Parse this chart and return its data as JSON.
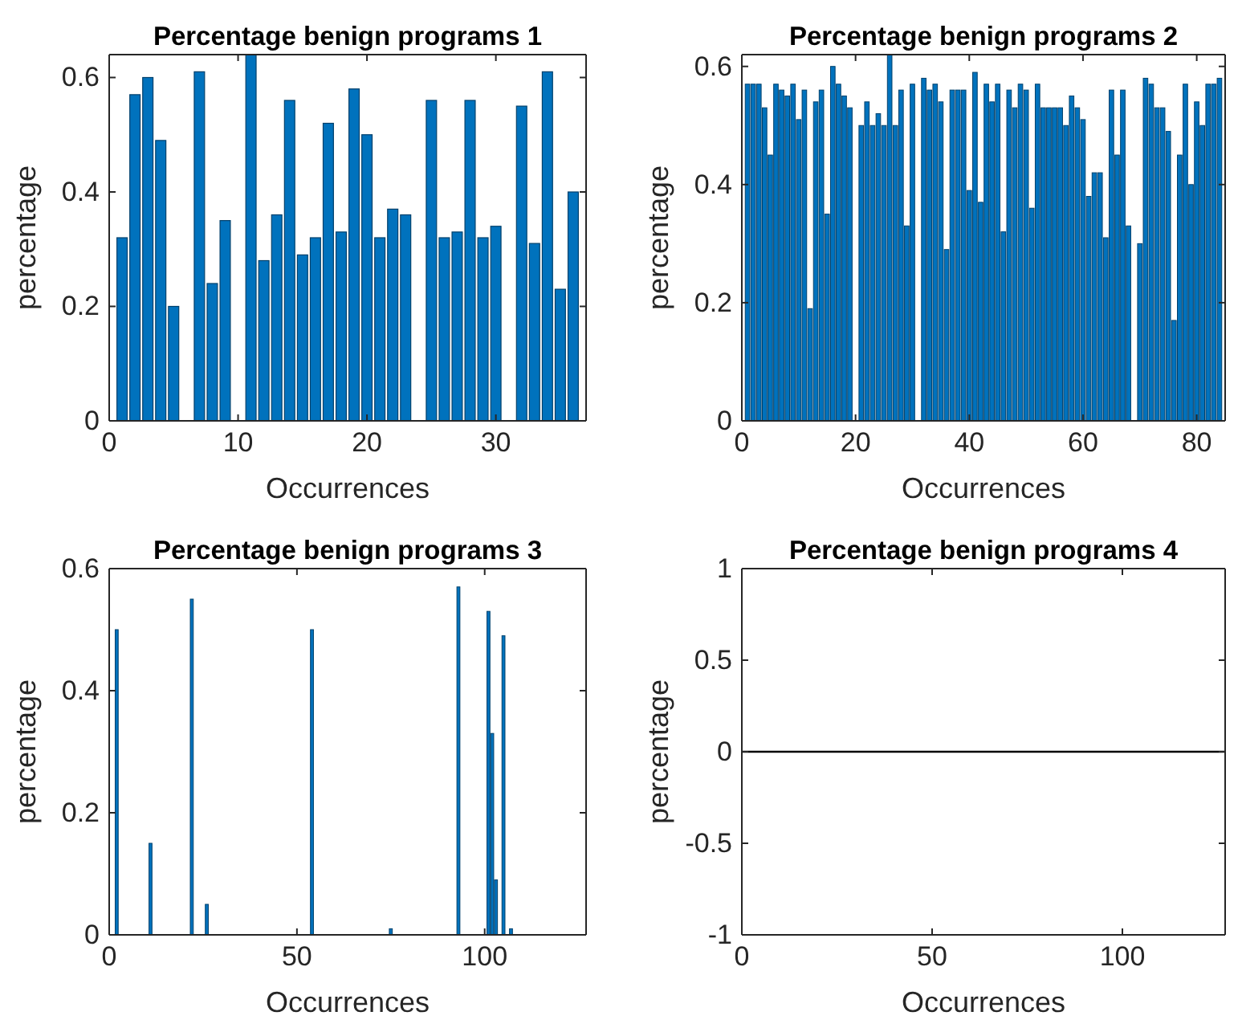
{
  "chart_data": [
    {
      "type": "bar",
      "title": "Percentage benign programs 1",
      "xlabel": "Occurrences",
      "ylabel": "percentage",
      "color": "#0072bd",
      "x": [
        1,
        2,
        3,
        4,
        5,
        6,
        7,
        8,
        9,
        10,
        11,
        12,
        13,
        14,
        15,
        16,
        17,
        18,
        19,
        20,
        21,
        22,
        23,
        24,
        25,
        26,
        27,
        28,
        29,
        30,
        31,
        32,
        33,
        34,
        35,
        36
      ],
      "values": [
        0.32,
        0.57,
        0.6,
        0.49,
        0.2,
        0,
        0.61,
        0.24,
        0.35,
        0,
        0.64,
        0.28,
        0.36,
        0.56,
        0.29,
        0.32,
        0.52,
        0.33,
        0.58,
        0.5,
        0.32,
        0.37,
        0.36,
        0,
        0.56,
        0.32,
        0.33,
        0.56,
        0.32,
        0.34,
        0,
        0.55,
        0.31,
        0.61,
        0.23,
        0.4
      ],
      "xlim": [
        0,
        37
      ],
      "xticks": [
        0,
        10,
        20,
        30
      ],
      "ylim": [
        0,
        0.64
      ],
      "yticks": [
        0,
        0.2,
        0.4,
        0.6
      ]
    },
    {
      "type": "bar",
      "title": "Percentage benign programs 2",
      "xlabel": "Occurrences",
      "ylabel": "percentage",
      "color": "#0072bd",
      "x": [
        1,
        2,
        3,
        4,
        5,
        6,
        7,
        8,
        9,
        10,
        11,
        12,
        13,
        14,
        15,
        16,
        17,
        18,
        19,
        20,
        21,
        22,
        23,
        24,
        25,
        26,
        27,
        28,
        29,
        30,
        31,
        32,
        33,
        34,
        35,
        36,
        37,
        38,
        39,
        40,
        41,
        42,
        43,
        44,
        45,
        46,
        47,
        48,
        49,
        50,
        51,
        52,
        53,
        54,
        55,
        56,
        57,
        58,
        59,
        60,
        61,
        62,
        63,
        64,
        65,
        66,
        67,
        68,
        69,
        70,
        71,
        72,
        73,
        74,
        75,
        76,
        77,
        78,
        79,
        80,
        81,
        82,
        83,
        84
      ],
      "values": [
        0.57,
        0.57,
        0.57,
        0.53,
        0.45,
        0.57,
        0.56,
        0.55,
        0.57,
        0.51,
        0.56,
        0.19,
        0.54,
        0.56,
        0.35,
        0.6,
        0.57,
        0.55,
        0.53,
        0,
        0.5,
        0.54,
        0.5,
        0.52,
        0.5,
        0.62,
        0.5,
        0.56,
        0.33,
        0.57,
        0,
        0.58,
        0.56,
        0.57,
        0.54,
        0.29,
        0.56,
        0.56,
        0.56,
        0.39,
        0.59,
        0.37,
        0.57,
        0.54,
        0.57,
        0.32,
        0.56,
        0.53,
        0.57,
        0.56,
        0.36,
        0.57,
        0.53,
        0.53,
        0.53,
        0.53,
        0.5,
        0.55,
        0.53,
        0.51,
        0.38,
        0.42,
        0.42,
        0.31,
        0.56,
        0.45,
        0.56,
        0.33,
        0,
        0.3,
        0.58,
        0.57,
        0.53,
        0.53,
        0.49,
        0.17,
        0.45,
        0.57,
        0.4,
        0.54,
        0.5,
        0.57,
        0.57,
        0.58
      ],
      "xlim": [
        0,
        85
      ],
      "xticks": [
        0,
        20,
        40,
        60,
        80
      ],
      "ylim": [
        0,
        0.62
      ],
      "yticks": [
        0,
        0.2,
        0.4,
        0.6
      ]
    },
    {
      "type": "bar",
      "title": "Percentage benign programs 3",
      "xlabel": "Occurrences",
      "ylabel": "percentage",
      "color": "#0072bd",
      "x": [
        2,
        11,
        22,
        26,
        54,
        75,
        93,
        101,
        102,
        103,
        105,
        107
      ],
      "values": [
        0.5,
        0.15,
        0.55,
        0.05,
        0.5,
        0.01,
        0.57,
        0.53,
        0.33,
        0.09,
        0.49,
        0.01
      ],
      "xlim": [
        0,
        127
      ],
      "xticks": [
        0,
        50,
        100
      ],
      "ylim": [
        0,
        0.6
      ],
      "yticks": [
        0,
        0.2,
        0.4,
        0.6
      ]
    },
    {
      "type": "bar",
      "title": "Percentage benign programs 4",
      "xlabel": "Occurrences",
      "ylabel": "percentage",
      "color": "#0072bd",
      "xlim": [
        0,
        127
      ],
      "xticks": [
        0,
        50,
        100
      ],
      "ylim": [
        -1,
        1
      ],
      "yticks": [
        -1,
        -0.5,
        0,
        0.5,
        1
      ],
      "ref_lines": [
        {
          "axis": "y",
          "value": 0,
          "color": "#000000"
        }
      ]
    }
  ]
}
